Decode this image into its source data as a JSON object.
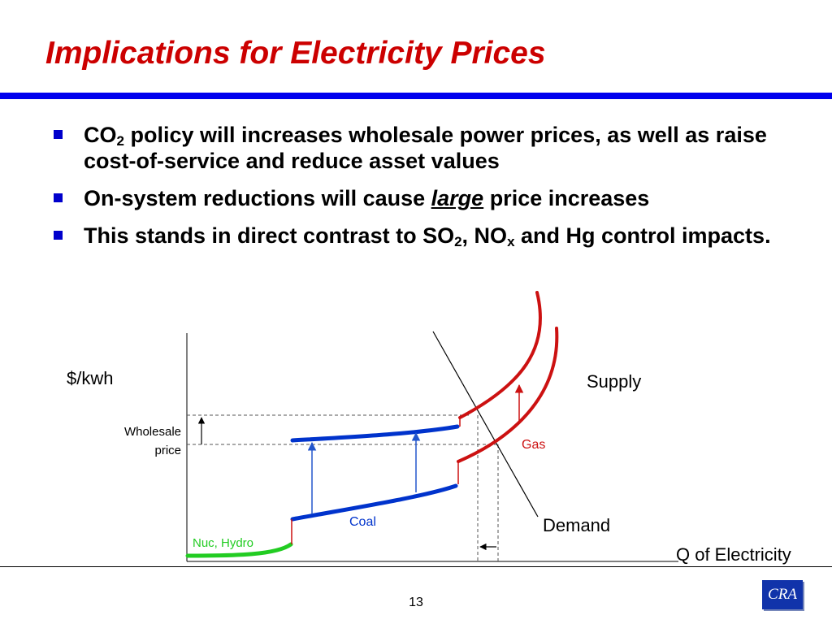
{
  "title": "Implications for Electricity Prices",
  "bullets": [
    {
      "pre": "CO",
      "sub": "2",
      "post": " policy will increases wholesale power prices, as well as raise cost-of-service and reduce asset values"
    },
    {
      "pre": "On-system reductions will cause ",
      "em": "large",
      "post": " price increases"
    },
    {
      "pre": "This stands in direct contrast to SO",
      "sub1": "2",
      "mid": ", NO",
      "sub2": "x",
      "post": " and Hg control impacts."
    }
  ],
  "diagram": {
    "y_axis_label": "$/kwh",
    "x_axis_label": "Q of Electricity",
    "wholesale_price_label": [
      "Wholesale",
      "price"
    ],
    "supply_label": "Supply",
    "demand_label": "Demand",
    "segments": {
      "nuclear_hydro": "Nuc, Hydro",
      "coal": "Coal",
      "gas": "Gas"
    },
    "colors": {
      "nuclear_hydro": "#22cc22",
      "coal": "#0033cc",
      "gas": "#cc1111",
      "supply_curve": "#cc1111",
      "arrow_up": "#2255cc"
    }
  },
  "footer": {
    "page_number": "13",
    "logo_text": "CRA"
  }
}
